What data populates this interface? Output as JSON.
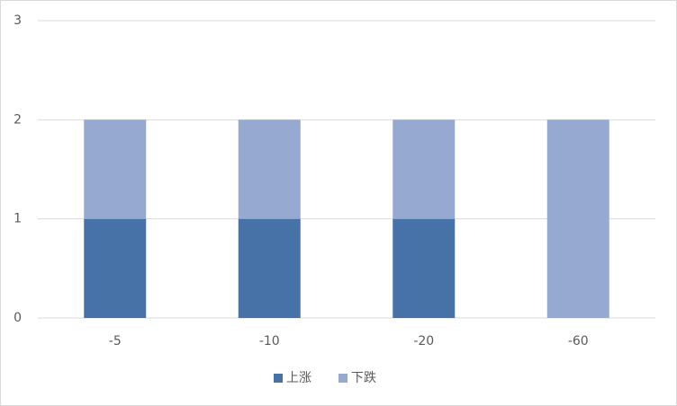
{
  "chart_data": {
    "type": "stacked_bar",
    "categories": [
      "-5",
      "-10",
      "-20",
      "-60"
    ],
    "series": [
      {
        "name": "上涨",
        "color": "#4672a8",
        "values": [
          1,
          1,
          1,
          0
        ]
      },
      {
        "name": "下跌",
        "color": "#95a9d1",
        "values": [
          1,
          1,
          1,
          2
        ]
      }
    ],
    "ylim": [
      0,
      3
    ],
    "yticks": [
      0,
      1,
      2,
      3
    ],
    "grid": true,
    "legend": "bottom"
  }
}
